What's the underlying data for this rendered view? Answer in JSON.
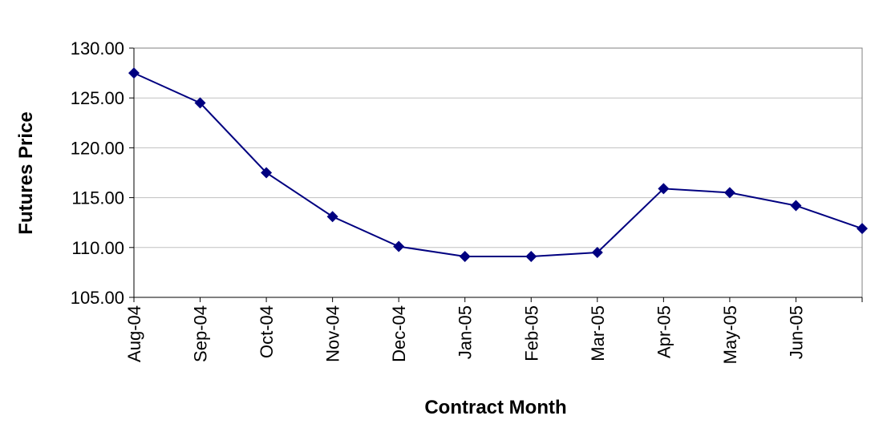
{
  "chart_data": {
    "type": "line",
    "x_label": "Contract Month",
    "y_label": "Futures Price",
    "categories": [
      "Aug-04",
      "Sep-04",
      "Oct-04",
      "Nov-04",
      "Dec-04",
      "Jan-05",
      "Feb-05",
      "Mar-05",
      "Apr-05",
      "May-05",
      "Jun-05",
      null
    ],
    "series": [
      {
        "name": "Futures Price",
        "color": "#000080",
        "values": [
          127.5,
          124.5,
          117.5,
          113.1,
          110.1,
          109.1,
          109.1,
          109.5,
          115.9,
          115.5,
          114.2,
          111.9
        ]
      }
    ],
    "ylim": [
      105,
      130
    ],
    "yticks": [
      {
        "value": 105,
        "label": "105.00"
      },
      {
        "value": 110,
        "label": "110.00"
      },
      {
        "value": 115,
        "label": "115.00"
      },
      {
        "value": 120,
        "label": "120.00"
      },
      {
        "value": 125,
        "label": "125.00"
      },
      {
        "value": 130,
        "label": "130.00"
      }
    ],
    "grid": true
  }
}
